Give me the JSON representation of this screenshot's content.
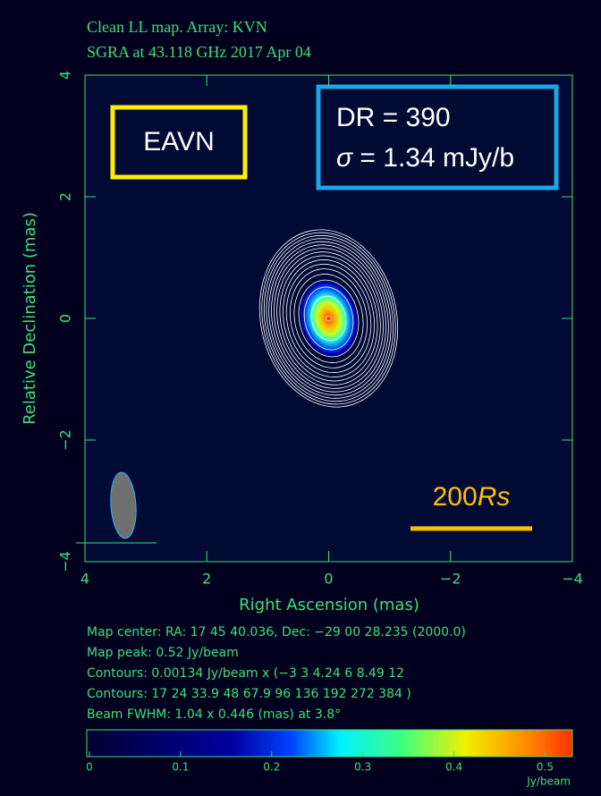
{
  "header": {
    "title": "Clean LL map.  Array:  KVN",
    "subtitle": "SGRA at 43.118 GHz 2017 Apr 04"
  },
  "chart_data": {
    "type": "contour-map",
    "xlabel": "Right Ascension  (mas)",
    "ylabel": "Relative Declination  (mas)",
    "xlim": [
      4,
      -4
    ],
    "ylim": [
      -4,
      4
    ],
    "xticks": [
      4,
      2,
      0,
      {
        "value": -2,
        "label": "−2"
      },
      {
        "value": -4,
        "label": "−4"
      }
    ],
    "yticks": [
      {
        "value": -4,
        "label": "−4"
      },
      {
        "value": -2,
        "label": "−2"
      },
      0,
      2,
      4
    ],
    "colorbar": {
      "lim": [
        0,
        0.53
      ],
      "ticks": [
        0,
        0.1,
        0.2,
        0.3,
        0.4,
        0.5
      ],
      "label": "Jy/beam"
    }
  },
  "info": [
    "Map center:  RA: 17 45 40.036,  Dec: −29 00 28.235 (2000.0)",
    "Map peak: 0.52 Jy/beam",
    "Contours: 0.00134 Jy/beam x (−3 3 4.24 6 8.49 12",
    "Contours: 17 24 33.9 48 67.9 96 136 192 272 384 )",
    "Beam FWHM: 1.04 x 0.446 (mas) at 3.8°"
  ],
  "annotations": {
    "array": "EAVN",
    "dr": "DR = 390",
    "sigma_symbol": "σ",
    "sigma_text": " = 1.34 mJy/b",
    "scale_number": "200",
    "scale_unit": "Rs"
  }
}
